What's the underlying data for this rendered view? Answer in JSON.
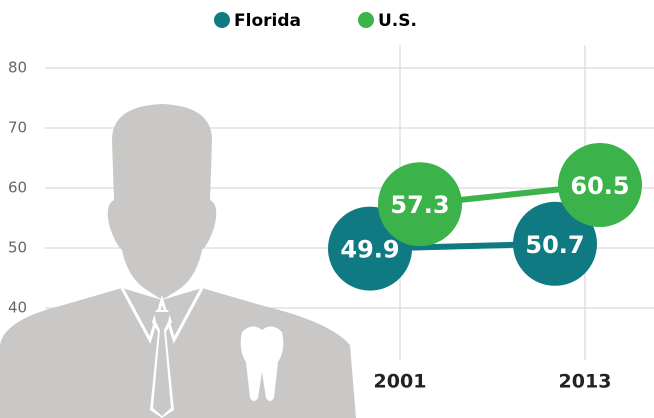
{
  "chart_data": {
    "type": "line",
    "categories": [
      "2001",
      "2013"
    ],
    "series": [
      {
        "name": "Florida",
        "color": "#0f7a82",
        "values": [
          49.9,
          50.7
        ]
      },
      {
        "name": "U.S.",
        "color": "#3bb34a",
        "values": [
          57.3,
          60.5
        ]
      }
    ],
    "ylim": [
      40,
      80
    ],
    "yticks": [
      40,
      50,
      60,
      70,
      80
    ],
    "grid": true
  }
}
